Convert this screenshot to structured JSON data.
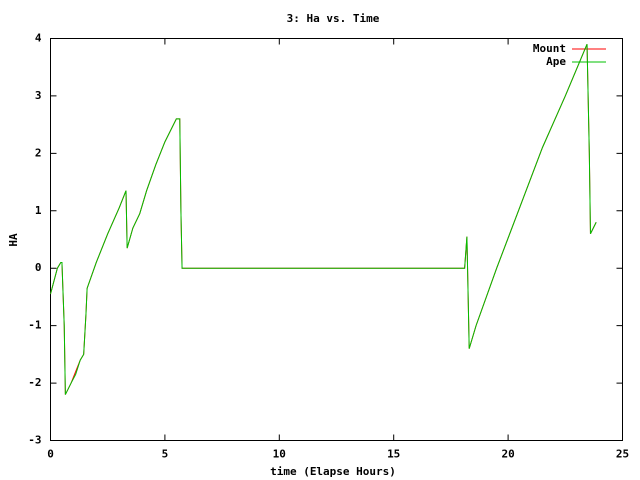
{
  "chart_data": {
    "type": "line",
    "title": "3: Ha vs. Time",
    "x_label": "time (Elapse Hours)",
    "y_label": "HA",
    "xlim": [
      0,
      25
    ],
    "xticks": [
      0,
      5,
      10,
      15,
      20,
      25
    ],
    "ylim": [
      -3,
      4
    ],
    "yticks": [
      -3,
      -2,
      -1,
      0,
      1,
      2,
      3,
      4
    ],
    "grid": false,
    "legend": "top-right",
    "series": [
      {
        "name": "Mount",
        "color": "#ff0000",
        "x": [
          0,
          0.3,
          0.45,
          0.5,
          0.6,
          0.65,
          0.9,
          1.1,
          1.3,
          1.45,
          1.55,
          1.6,
          2.0,
          2.5,
          3.0,
          3.3,
          3.35,
          3.6,
          3.9,
          4.2,
          4.6,
          5.0,
          5.5,
          5.65,
          5.7,
          5.75,
          18.1,
          18.2,
          18.3,
          18.6,
          19.5,
          20.5,
          21.5,
          22.5,
          23.45,
          23.55,
          23.6,
          23.85
        ],
        "values": [
          -0.45,
          0.0,
          0.1,
          0.1,
          -1.0,
          -2.2,
          -2.0,
          -1.8,
          -1.6,
          -1.5,
          -0.8,
          -0.35,
          0.1,
          0.6,
          1.05,
          1.35,
          0.35,
          0.7,
          0.95,
          1.35,
          1.8,
          2.2,
          2.6,
          2.6,
          1.0,
          0.0,
          0.0,
          0.55,
          -1.4,
          -1.0,
          0.0,
          1.05,
          2.1,
          3.0,
          3.9,
          2.0,
          0.6,
          0.8
        ]
      },
      {
        "name": "Ape",
        "color": "#00c000",
        "x": [
          0,
          0.3,
          0.45,
          0.5,
          0.6,
          0.65,
          0.9,
          1.1,
          1.3,
          1.45,
          1.55,
          1.6,
          2.0,
          2.5,
          3.0,
          3.3,
          3.35,
          3.6,
          3.9,
          4.2,
          4.6,
          5.0,
          5.5,
          5.65,
          5.7,
          5.75,
          18.1,
          18.2,
          18.3,
          18.6,
          19.5,
          20.5,
          21.5,
          22.5,
          23.45,
          23.55,
          23.6,
          23.85
        ],
        "values": [
          -0.45,
          0.0,
          0.1,
          0.1,
          -1.0,
          -2.2,
          -2.0,
          -1.85,
          -1.6,
          -1.5,
          -0.8,
          -0.35,
          0.1,
          0.6,
          1.05,
          1.35,
          0.35,
          0.7,
          0.95,
          1.35,
          1.8,
          2.2,
          2.6,
          2.6,
          1.0,
          0.0,
          0.0,
          0.55,
          -1.4,
          -1.0,
          0.0,
          1.05,
          2.1,
          3.0,
          3.9,
          2.0,
          0.6,
          0.8
        ]
      }
    ]
  }
}
